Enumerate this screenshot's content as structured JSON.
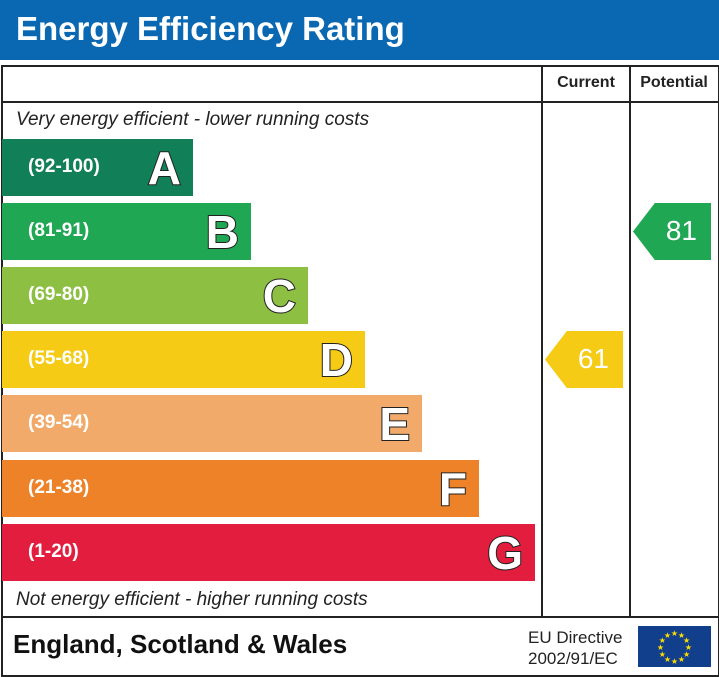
{
  "header": {
    "title": "Energy Efficiency Rating",
    "color": "#0a67b2"
  },
  "columns": {
    "current": "Current",
    "potential": "Potential"
  },
  "notes": {
    "top": "Very energy efficient - lower running costs",
    "bottom": "Not energy efficient - higher running costs"
  },
  "chart_data": {
    "type": "bar",
    "categories": [
      "A",
      "B",
      "C",
      "D",
      "E",
      "F",
      "G"
    ],
    "bands": [
      {
        "letter": "A",
        "range": "(92-100)",
        "color": "#117f57"
      },
      {
        "letter": "B",
        "range": "(81-91)",
        "color": "#20a753"
      },
      {
        "letter": "C",
        "range": "(69-80)",
        "color": "#8dbf43"
      },
      {
        "letter": "D",
        "range": "(55-68)",
        "color": "#f5cb15"
      },
      {
        "letter": "E",
        "range": "(39-54)",
        "color": "#f2aa6a"
      },
      {
        "letter": "F",
        "range": "(21-38)",
        "color": "#ee8228"
      },
      {
        "letter": "G",
        "range": "(1-20)",
        "color": "#e31d3d"
      }
    ],
    "current": {
      "value": "61",
      "band": "D",
      "color": "#f5cb15"
    },
    "potential": {
      "value": "81",
      "band": "B",
      "color": "#20a753"
    }
  },
  "footer": {
    "country": "England, Scotland & Wales",
    "directive_line1": "EU Directive",
    "directive_line2": "2002/91/EC",
    "flag": "eu-flag"
  }
}
